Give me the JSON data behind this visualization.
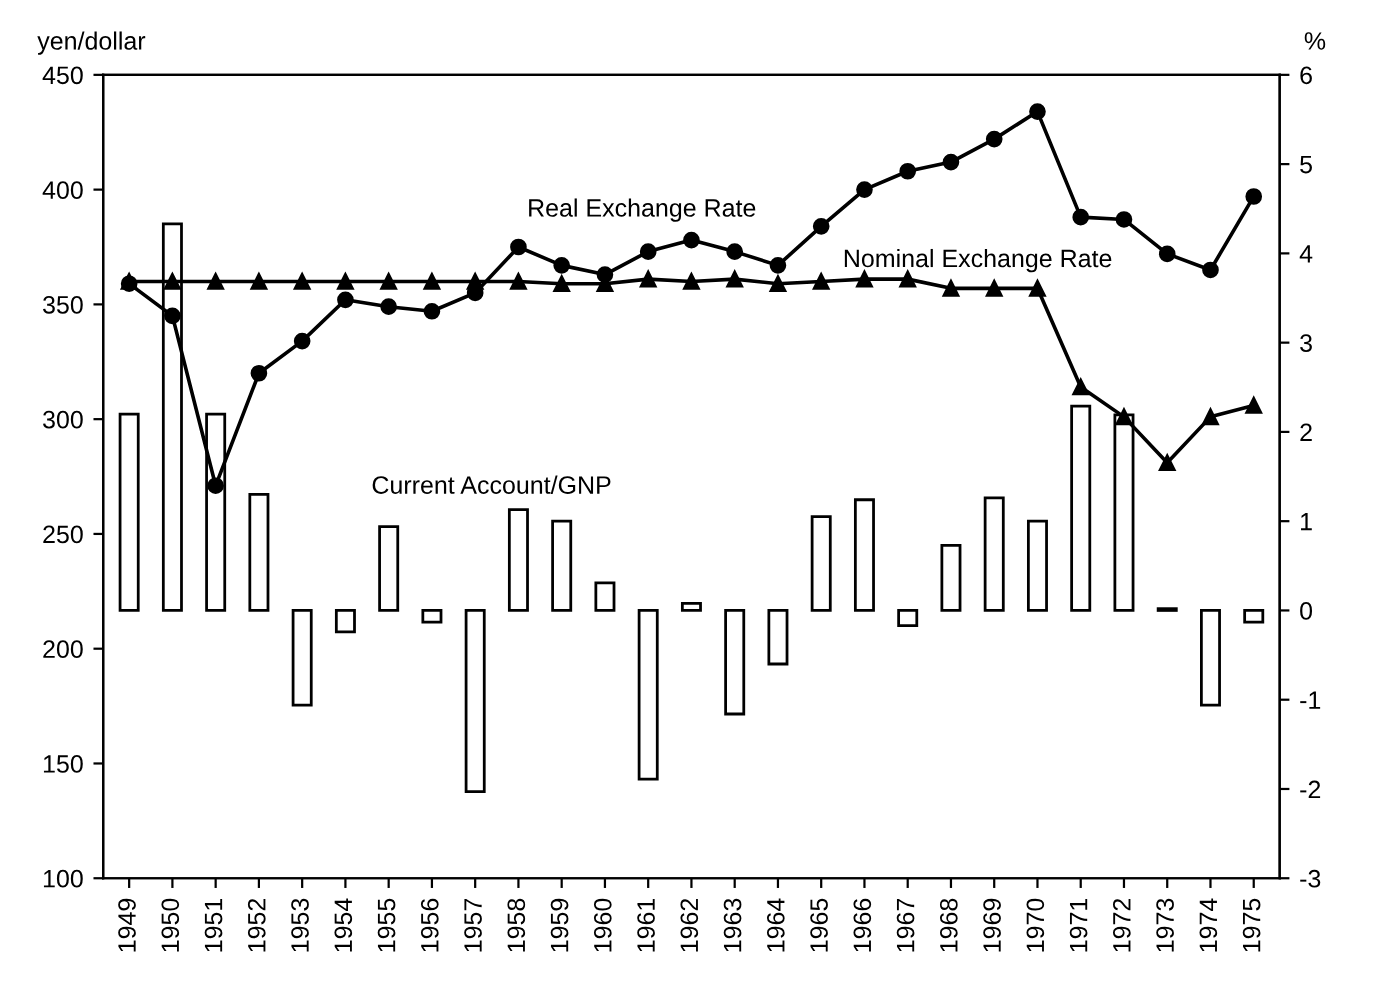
{
  "chart_data": {
    "type": "line",
    "ylabel": "yen/dollar",
    "y2label": "%",
    "categories": [
      "1949",
      "1950",
      "1951",
      "1952",
      "1953",
      "1954",
      "1955",
      "1956",
      "1957",
      "1958",
      "1959",
      "1960",
      "1961",
      "1962",
      "1963",
      "1964",
      "1965",
      "1966",
      "1967",
      "1968",
      "1969",
      "1970",
      "1971",
      "1972",
      "1973",
      "1974",
      "1975"
    ],
    "series": [
      {
        "name": "Current Account/GNP",
        "type": "bar",
        "axis": "y2",
        "color": "#ffffff",
        "values": [
          2.2,
          4.33,
          2.2,
          1.3,
          -1.06,
          -0.24,
          0.94,
          -0.13,
          -2.03,
          1.13,
          1.0,
          0.31,
          -1.89,
          0.08,
          -1.16,
          -0.6,
          1.05,
          1.24,
          -0.17,
          0.73,
          1.26,
          1.0,
          2.29,
          2.19,
          0.02,
          -1.06,
          -0.13
        ]
      },
      {
        "name": "Real Exchange Rate",
        "color": "#000000",
        "marker": "circle",
        "values": [
          359,
          345,
          271,
          320,
          334,
          352,
          349,
          347,
          355,
          375,
          367,
          363,
          373,
          378,
          373,
          367,
          384,
          400,
          408,
          412,
          422,
          434,
          388,
          387,
          372,
          365,
          397
        ]
      },
      {
        "name": "Nominal Exchange Rate",
        "color": "#000000",
        "marker": "triangle",
        "values": [
          360,
          360,
          360,
          360,
          360,
          360,
          360,
          360,
          360,
          360,
          359,
          359,
          361,
          360,
          361,
          359,
          360,
          361,
          361,
          357,
          357,
          357,
          314,
          301,
          281,
          301,
          306
        ]
      }
    ],
    "ylim": [
      100,
      450
    ],
    "yticks": [
      100,
      150,
      200,
      250,
      300,
      350,
      400,
      450
    ],
    "y2lim": [
      -3,
      6
    ],
    "y2ticks": [
      -3,
      -2,
      -1,
      0,
      1,
      2,
      3,
      4,
      5,
      6
    ],
    "grid": false,
    "legend": false
  }
}
